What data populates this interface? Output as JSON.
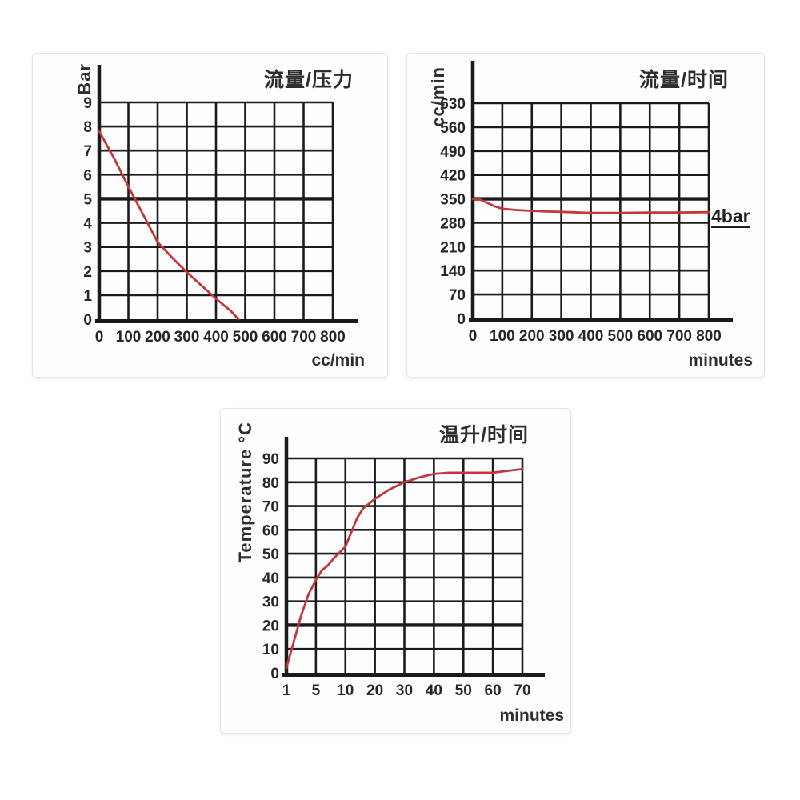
{
  "colors": {
    "curve": "#c23739",
    "grid": "#1b1b1b",
    "text": "#262626",
    "panel_border": "#e3e3e3",
    "background": "#ffffff"
  },
  "chart_data": [
    {
      "type": "line",
      "title": "流量/压力",
      "xlabel": "cc/min",
      "ylabel": "Bar",
      "x_ticks": [
        0,
        100,
        200,
        300,
        400,
        500,
        600,
        700,
        800
      ],
      "y_ticks": [
        0,
        1,
        2,
        3,
        4,
        5,
        6,
        7,
        8,
        9
      ],
      "xlim": [
        0,
        800
      ],
      "ylim": [
        0,
        9
      ],
      "grid": true,
      "legend": "none",
      "emphasized_y_gridline": 5,
      "line_color": "#c23739",
      "points": [
        [
          0,
          7.8
        ],
        [
          50,
          6.7
        ],
        [
          100,
          5.5
        ],
        [
          150,
          4.35
        ],
        [
          200,
          3.2
        ],
        [
          250,
          2.55
        ],
        [
          300,
          1.95
        ],
        [
          350,
          1.4
        ],
        [
          400,
          0.85
        ],
        [
          450,
          0.35
        ],
        [
          477,
          0
        ]
      ]
    },
    {
      "type": "line",
      "title": "流量/时间",
      "xlabel": "minutes",
      "ylabel": "cc/min",
      "x_ticks": [
        0,
        100,
        200,
        300,
        400,
        500,
        600,
        700,
        800
      ],
      "y_ticks": [
        0,
        70,
        140,
        210,
        280,
        350,
        420,
        490,
        560,
        630
      ],
      "xlim": [
        0,
        800
      ],
      "ylim": [
        0,
        630
      ],
      "grid": true,
      "legend": "none",
      "annotation": "4bar",
      "emphasized_y_gridline": 350,
      "line_color": "#c23739",
      "points": [
        [
          0,
          350
        ],
        [
          25,
          348
        ],
        [
          50,
          338
        ],
        [
          75,
          328
        ],
        [
          100,
          321
        ],
        [
          150,
          317
        ],
        [
          200,
          315
        ],
        [
          250,
          313
        ],
        [
          300,
          312
        ],
        [
          400,
          309
        ],
        [
          500,
          309
        ],
        [
          600,
          310
        ],
        [
          700,
          310
        ],
        [
          800,
          311
        ]
      ]
    },
    {
      "type": "line",
      "title": "温升/时间",
      "xlabel": "minutes",
      "ylabel": "Temperature °C",
      "x_ticks": [
        1,
        5,
        10,
        20,
        30,
        40,
        50,
        60,
        70
      ],
      "x_scale": "piecewise-categorical",
      "y_ticks": [
        0,
        10,
        20,
        30,
        40,
        50,
        60,
        70,
        80,
        90
      ],
      "ylim": [
        0,
        90
      ],
      "grid": true,
      "legend": "none",
      "emphasized_y_gridline": 20,
      "line_color": "#c23739",
      "points": [
        [
          1,
          2
        ],
        [
          2,
          13
        ],
        [
          3,
          24
        ],
        [
          4,
          33
        ],
        [
          5,
          39
        ],
        [
          6,
          43
        ],
        [
          7,
          45
        ],
        [
          8,
          48
        ],
        [
          10,
          53
        ],
        [
          12,
          59
        ],
        [
          14,
          65
        ],
        [
          16,
          69
        ],
        [
          18,
          71
        ],
        [
          20,
          73
        ],
        [
          25,
          77
        ],
        [
          30,
          80
        ],
        [
          35,
          82
        ],
        [
          40,
          83.5
        ],
        [
          45,
          84
        ],
        [
          50,
          84
        ],
        [
          55,
          84
        ],
        [
          60,
          84
        ],
        [
          65,
          84.8
        ],
        [
          70,
          85.5
        ]
      ]
    }
  ]
}
